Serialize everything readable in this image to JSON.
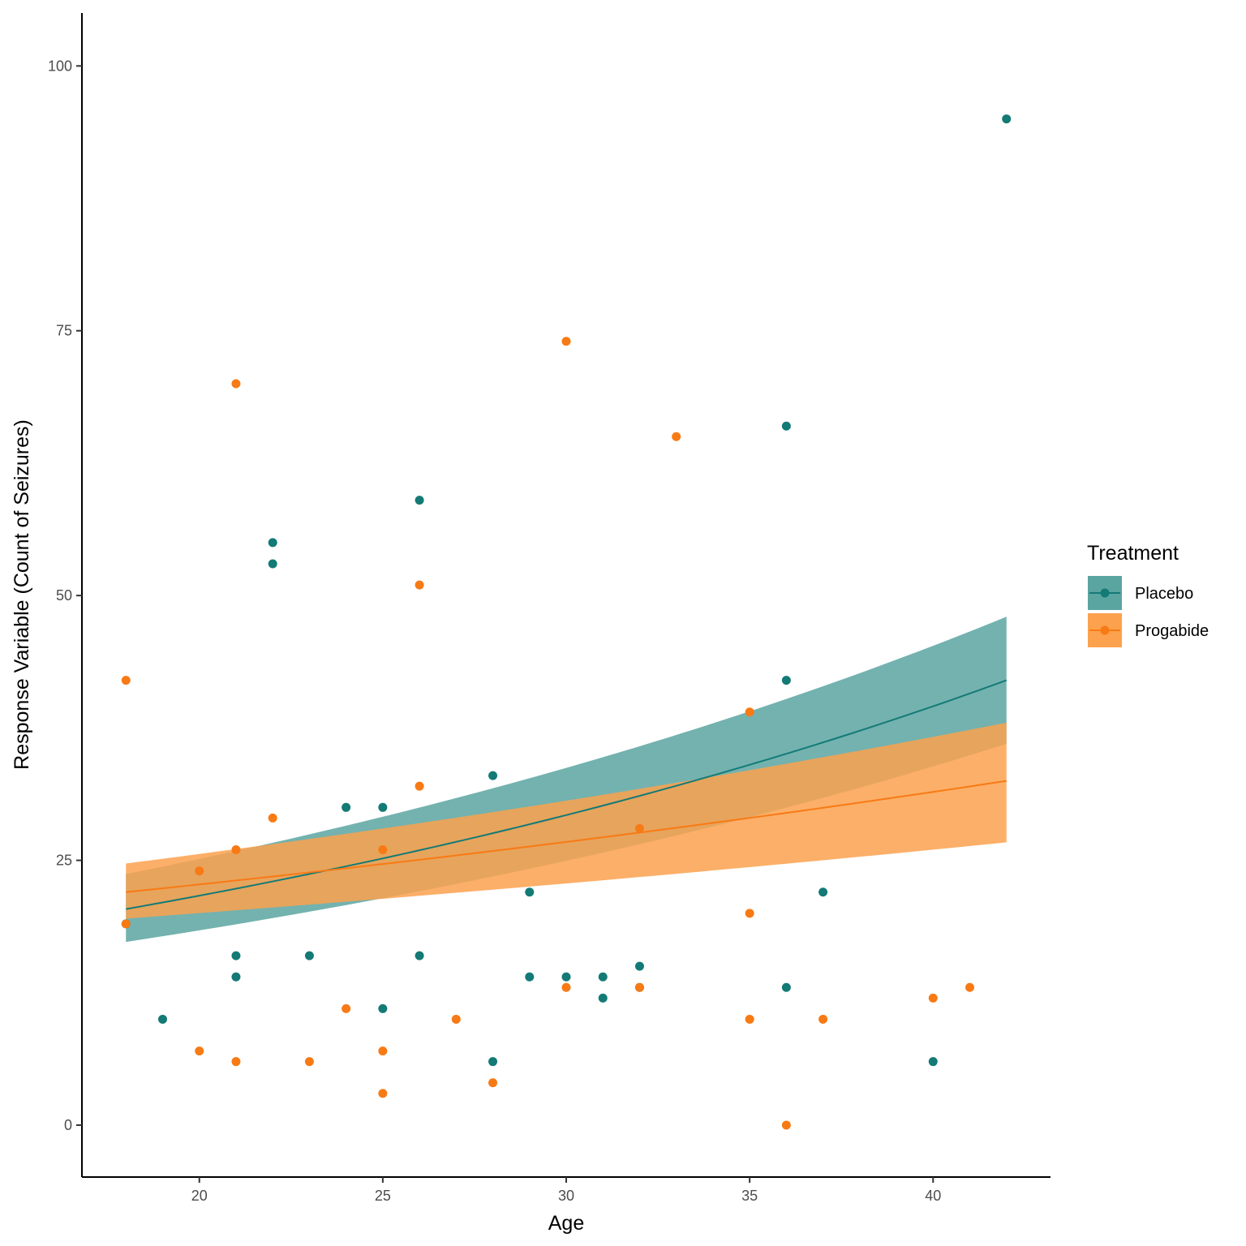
{
  "chart_data": {
    "type": "scatter",
    "xlabel": "Age",
    "ylabel": "Response Variable (Count of Seizures)",
    "xlim": [
      16.8,
      43.2
    ],
    "ylim": [
      -4.9,
      105
    ],
    "xticks": [
      20,
      25,
      30,
      35,
      40
    ],
    "yticks": [
      0,
      25,
      50,
      75,
      100
    ],
    "grid": false,
    "legend": {
      "title": "Treatment",
      "position": "right"
    },
    "colors": {
      "Placebo": "#137a76",
      "Progabide": "#f87a15",
      "Placebo_band": "#5ba5a1",
      "Progabide_band": "#fca14d"
    },
    "series": [
      {
        "name": "Placebo",
        "points": [
          [
            18,
            19
          ],
          [
            19,
            10
          ],
          [
            21,
            16
          ],
          [
            21,
            14
          ],
          [
            22,
            55
          ],
          [
            22,
            53
          ],
          [
            23,
            16
          ],
          [
            24,
            30
          ],
          [
            25,
            30
          ],
          [
            25,
            11
          ],
          [
            26,
            59
          ],
          [
            26,
            16
          ],
          [
            28,
            33
          ],
          [
            28,
            6
          ],
          [
            29,
            22
          ],
          [
            29,
            14
          ],
          [
            30,
            14
          ],
          [
            31,
            14
          ],
          [
            31,
            12
          ],
          [
            32,
            15
          ],
          [
            32,
            13
          ],
          [
            36,
            66
          ],
          [
            36,
            42
          ],
          [
            36,
            13
          ],
          [
            37,
            22
          ],
          [
            40,
            6
          ],
          [
            42,
            95
          ]
        ],
        "fit": {
          "x0": 18,
          "y0": 20.4,
          "x1": 42,
          "y1": 42.0,
          "lower0": 17.3,
          "lower1": 36.0,
          "upper0": 23.7,
          "upper1": 48.0,
          "model": "log-linear"
        }
      },
      {
        "name": "Progabide",
        "points": [
          [
            18,
            42
          ],
          [
            18,
            19
          ],
          [
            20,
            24
          ],
          [
            20,
            7
          ],
          [
            21,
            70
          ],
          [
            21,
            26
          ],
          [
            21,
            6
          ],
          [
            22,
            29
          ],
          [
            23,
            6
          ],
          [
            24,
            11
          ],
          [
            25,
            26
          ],
          [
            25,
            7
          ],
          [
            25,
            3
          ],
          [
            26,
            51
          ],
          [
            26,
            32
          ],
          [
            27,
            10
          ],
          [
            28,
            4
          ],
          [
            30,
            74
          ],
          [
            30,
            13
          ],
          [
            32,
            28
          ],
          [
            32,
            13
          ],
          [
            33,
            65
          ],
          [
            35,
            39
          ],
          [
            35,
            20
          ],
          [
            35,
            10
          ],
          [
            36,
            0
          ],
          [
            37,
            10
          ],
          [
            40,
            12
          ],
          [
            41,
            13
          ]
        ],
        "fit": {
          "x0": 18,
          "y0": 22.0,
          "x1": 42,
          "y1": 32.5,
          "lower0": 19.5,
          "lower1": 26.7,
          "upper0": 24.7,
          "upper1": 38.0,
          "model": "log-linear"
        }
      }
    ]
  }
}
